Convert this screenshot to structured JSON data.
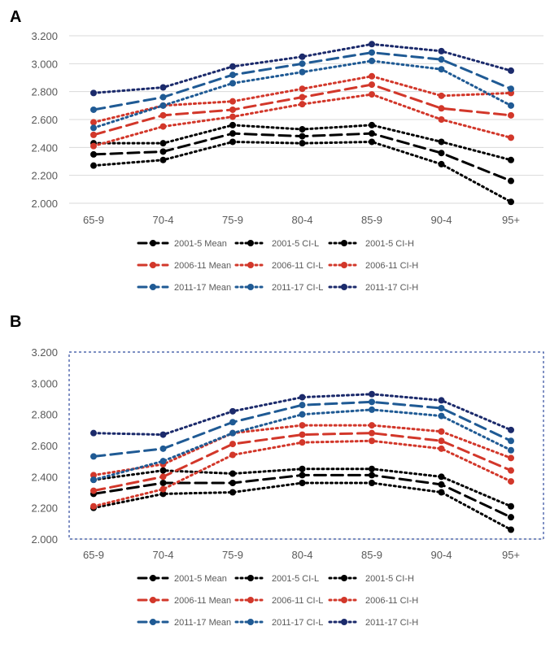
{
  "chart_data": [
    {
      "panel": "A",
      "type": "line",
      "categories": [
        "65-9",
        "70-4",
        "75-9",
        "80-4",
        "85-9",
        "90-4",
        "95+"
      ],
      "y_ticks": [
        "2.000",
        "2.200",
        "2.400",
        "2.600",
        "2.800",
        "3.000",
        "3.200"
      ],
      "ylim": [
        2.0,
        3.2
      ],
      "grid": true,
      "legend_position": "bottom",
      "series": [
        {
          "name": "2001-5 Mean",
          "color": "#000000",
          "dash": "mean",
          "values": [
            2.35,
            2.37,
            2.5,
            2.48,
            2.5,
            2.36,
            2.16
          ]
        },
        {
          "name": "2001-5 CI-L",
          "color": "#000000",
          "dash": "dot",
          "values": [
            2.27,
            2.31,
            2.44,
            2.43,
            2.44,
            2.28,
            2.01
          ]
        },
        {
          "name": "2001-5 CI-H",
          "color": "#000000",
          "dash": "dot",
          "values": [
            2.43,
            2.43,
            2.56,
            2.53,
            2.56,
            2.44,
            2.31
          ]
        },
        {
          "name": "2006-11 Mean",
          "color": "#d2372a",
          "dash": "mean",
          "values": [
            2.49,
            2.63,
            2.67,
            2.76,
            2.85,
            2.68,
            2.63
          ]
        },
        {
          "name": "2006-11 CI-L",
          "color": "#d2372a",
          "dash": "dot",
          "values": [
            2.41,
            2.55,
            2.62,
            2.71,
            2.78,
            2.6,
            2.47
          ]
        },
        {
          "name": "2006-11 CI-H",
          "color": "#d2372a",
          "dash": "dot",
          "values": [
            2.58,
            2.7,
            2.73,
            2.82,
            2.91,
            2.77,
            2.79
          ]
        },
        {
          "name": "2011-17 Mean",
          "color": "#1f5a94",
          "dash": "mean",
          "values": [
            2.67,
            2.76,
            2.92,
            3.0,
            3.08,
            3.03,
            2.82
          ]
        },
        {
          "name": "2011-17 CI-L",
          "color": "#1f5a94",
          "dash": "dot",
          "values": [
            2.54,
            2.7,
            2.86,
            2.94,
            3.02,
            2.96,
            2.7
          ]
        },
        {
          "name": "2011-17 CI-H",
          "color": "#1b2a6b",
          "dash": "dot",
          "values": [
            2.79,
            2.83,
            2.98,
            3.05,
            3.14,
            3.09,
            2.95
          ]
        }
      ]
    },
    {
      "panel": "B",
      "type": "line",
      "categories": [
        "65-9",
        "70-4",
        "75-9",
        "80-4",
        "85-9",
        "90-4",
        "95+"
      ],
      "y_ticks": [
        "2.000",
        "2.200",
        "2.400",
        "2.600",
        "2.800",
        "3.000",
        "3.200"
      ],
      "ylim": [
        2.0,
        3.2
      ],
      "grid": false,
      "legend_position": "bottom",
      "series": [
        {
          "name": "2001-5 Mean",
          "color": "#000000",
          "dash": "mean",
          "values": [
            2.29,
            2.36,
            2.36,
            2.41,
            2.41,
            2.35,
            2.14
          ]
        },
        {
          "name": "2001-5 CI-L",
          "color": "#000000",
          "dash": "dot",
          "values": [
            2.2,
            2.29,
            2.3,
            2.36,
            2.36,
            2.3,
            2.06
          ]
        },
        {
          "name": "2001-5 CI-H",
          "color": "#000000",
          "dash": "dot",
          "values": [
            2.38,
            2.44,
            2.42,
            2.45,
            2.45,
            2.4,
            2.21
          ]
        },
        {
          "name": "2006-11 Mean",
          "color": "#d2372a",
          "dash": "mean",
          "values": [
            2.31,
            2.4,
            2.61,
            2.67,
            2.68,
            2.63,
            2.44
          ]
        },
        {
          "name": "2006-11 CI-L",
          "color": "#d2372a",
          "dash": "dot",
          "values": [
            2.21,
            2.32,
            2.54,
            2.62,
            2.63,
            2.58,
            2.37
          ]
        },
        {
          "name": "2006-11 CI-H",
          "color": "#d2372a",
          "dash": "dot",
          "values": [
            2.41,
            2.48,
            2.68,
            2.73,
            2.73,
            2.69,
            2.52
          ]
        },
        {
          "name": "2011-17 Mean",
          "color": "#1f5a94",
          "dash": "mean",
          "values": [
            2.53,
            2.58,
            2.75,
            2.86,
            2.88,
            2.84,
            2.63
          ]
        },
        {
          "name": "2011-17 CI-L",
          "color": "#1f5a94",
          "dash": "dot",
          "values": [
            2.38,
            2.5,
            2.68,
            2.8,
            2.83,
            2.79,
            2.57
          ]
        },
        {
          "name": "2011-17 CI-H",
          "color": "#1b2a6b",
          "dash": "dot",
          "values": [
            2.68,
            2.67,
            2.82,
            2.91,
            2.93,
            2.89,
            2.7
          ]
        }
      ]
    }
  ]
}
